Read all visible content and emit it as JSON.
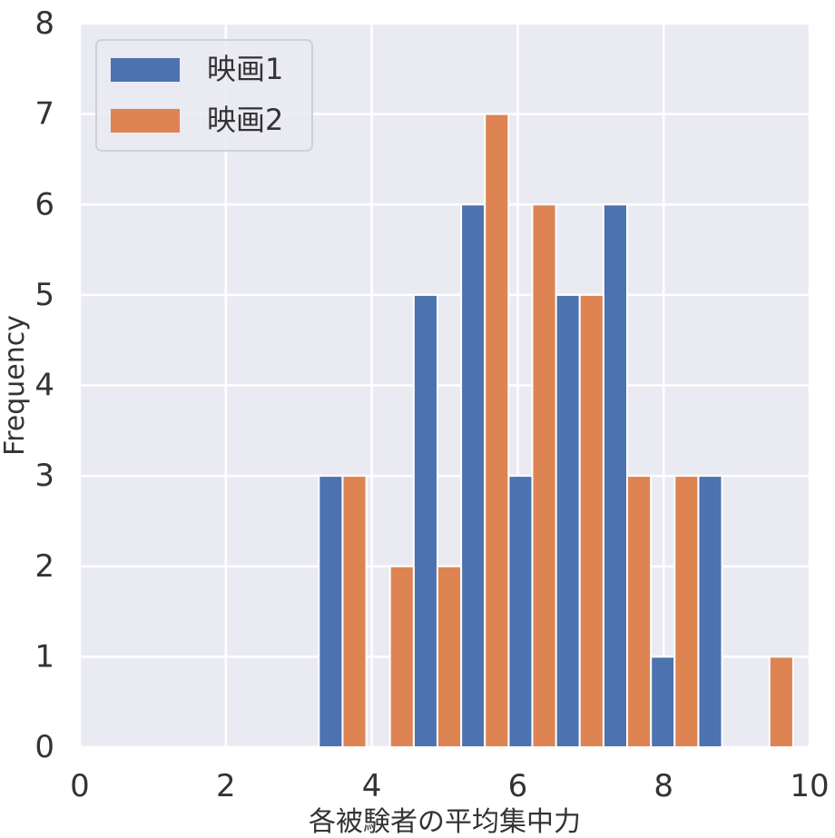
{
  "chart_data": {
    "type": "bar",
    "title": "",
    "xlabel": "各被験者の平均集中力",
    "ylabel": "Frequency",
    "xlim": [
      0,
      10
    ],
    "ylim": [
      0,
      8
    ],
    "xticks": [
      "0",
      "2",
      "4",
      "6",
      "8",
      "10"
    ],
    "yticks": [
      "0",
      "1",
      "2",
      "3",
      "4",
      "5",
      "6",
      "7",
      "8"
    ],
    "grid": true,
    "legend_position": "top-left",
    "bin_width": 0.65,
    "series": [
      {
        "name": "映画1",
        "color": "#4c72b0",
        "bins": [
          {
            "x": 3.6,
            "value": 3
          },
          {
            "x": 4.9,
            "value": 5
          },
          {
            "x": 5.55,
            "value": 6
          },
          {
            "x": 6.2,
            "value": 3
          },
          {
            "x": 6.85,
            "value": 5
          },
          {
            "x": 7.5,
            "value": 6
          },
          {
            "x": 8.15,
            "value": 1
          },
          {
            "x": 8.8,
            "value": 3
          }
        ]
      },
      {
        "name": "映画2",
        "color": "#dd8452",
        "bins": [
          {
            "x": 3.6,
            "value": 3
          },
          {
            "x": 4.25,
            "value": 2
          },
          {
            "x": 4.9,
            "value": 2
          },
          {
            "x": 5.55,
            "value": 7
          },
          {
            "x": 6.2,
            "value": 6
          },
          {
            "x": 6.85,
            "value": 5
          },
          {
            "x": 7.5,
            "value": 3
          },
          {
            "x": 8.15,
            "value": 3
          },
          {
            "x": 9.45,
            "value": 1
          }
        ]
      }
    ]
  }
}
